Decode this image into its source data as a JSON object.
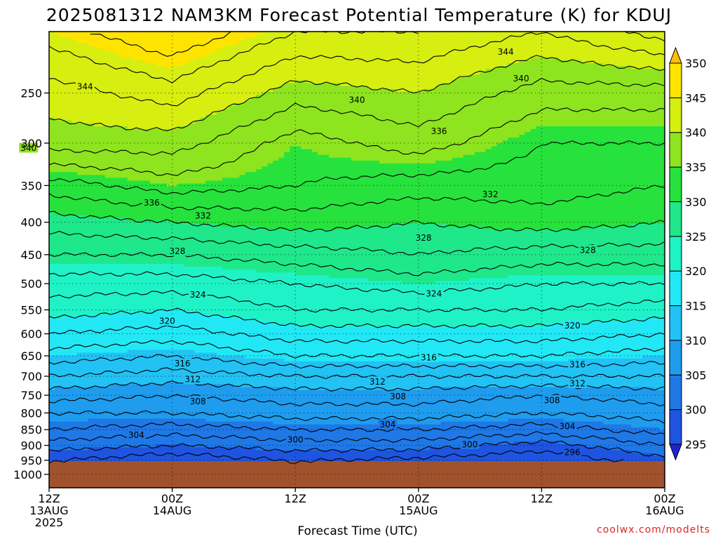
{
  "chart_data": {
    "type": "heatmap",
    "title": "2025081312 NAM3KM Forecast Potential Temperature (K) for KDUJ",
    "xlabel": "Forecast Time (UTC)",
    "ylabel": "",
    "x_ticks": [
      {
        "line1": "12Z",
        "line2": "13AUG",
        "line3": "2025",
        "hour": 0
      },
      {
        "line1": "00Z",
        "line2": "14AUG",
        "line3": "",
        "hour": 12
      },
      {
        "line1": "12Z",
        "line2": "",
        "line3": "",
        "hour": 24
      },
      {
        "line1": "00Z",
        "line2": "15AUG",
        "line3": "",
        "hour": 36
      },
      {
        "line1": "12Z",
        "line2": "",
        "line3": "",
        "hour": 48
      },
      {
        "line1": "00Z",
        "line2": "16AUG",
        "line3": "",
        "hour": 60
      }
    ],
    "x_range_hours": [
      0,
      60
    ],
    "y_scale": "log-pressure",
    "y_range_hpa": [
      1050,
      200
    ],
    "y_ticks": [
      250,
      300,
      350,
      400,
      450,
      500,
      550,
      600,
      650,
      700,
      750,
      800,
      850,
      900,
      950,
      1000
    ],
    "surface_pressure_hpa": 955,
    "grid": "dotted",
    "colorbar": {
      "levels": [
        295,
        300,
        305,
        310,
        315,
        320,
        325,
        330,
        335,
        340,
        345,
        350
      ],
      "colors": [
        "#1f23d6",
        "#1e54e0",
        "#1f78e6",
        "#1f9cee",
        "#22c2f4",
        "#22e8f6",
        "#20f2c8",
        "#1ee88a",
        "#27e23c",
        "#8ee41e",
        "#d6ee10",
        "#ffe400",
        "#ffbe00"
      ],
      "placement": "right"
    },
    "theta_profiles": {
      "pressures_hpa": [
        955,
        900,
        850,
        800,
        750,
        700,
        650,
        600,
        550,
        500,
        450,
        400,
        350,
        300,
        250,
        200
      ],
      "hours": [
        0,
        12,
        24,
        36,
        48,
        60
      ],
      "values_k": [
        [
          298,
          296,
          298,
          297,
          296,
          299
        ],
        [
          301,
          300,
          301,
          301,
          299,
          302
        ],
        [
          304,
          303,
          304,
          304,
          303,
          305
        ],
        [
          306,
          306,
          307,
          307,
          306,
          307
        ],
        [
          309,
          308,
          309,
          309,
          308,
          309
        ],
        [
          312,
          311,
          312,
          312,
          312,
          312
        ],
        [
          315,
          314,
          316,
          316,
          316,
          315
        ],
        [
          318,
          317,
          319,
          319,
          319,
          318
        ],
        [
          321,
          320,
          322,
          322,
          322,
          321
        ],
        [
          323,
          323,
          324,
          325,
          324,
          324
        ],
        [
          326,
          326,
          327,
          328,
          327,
          327
        ],
        [
          329,
          330,
          331,
          330,
          331,
          330
        ],
        [
          333,
          335,
          334,
          333,
          333,
          332
        ],
        [
          339,
          339,
          335,
          337,
          334,
          334
        ],
        [
          341,
          343,
          339,
          340,
          337,
          337
        ],
        [
          345,
          348,
          344,
          344,
          342,
          345
        ]
      ]
    },
    "contour_labels": [
      {
        "text": "344",
        "hour": 3.5,
        "hpa": 244
      },
      {
        "text": "344",
        "hour": 44.5,
        "hpa": 215
      },
      {
        "text": "340",
        "hour": 30,
        "hpa": 256
      },
      {
        "text": "340",
        "hour": 46,
        "hpa": 237
      },
      {
        "text": "340",
        "hour": -2,
        "hpa": 305
      },
      {
        "text": "336",
        "hour": 38,
        "hpa": 287
      },
      {
        "text": "336",
        "hour": 10,
        "hpa": 372
      },
      {
        "text": "332",
        "hour": 15,
        "hpa": 390
      },
      {
        "text": "332",
        "hour": 43,
        "hpa": 361
      },
      {
        "text": "328",
        "hour": 12.5,
        "hpa": 444
      },
      {
        "text": "328",
        "hour": 36.5,
        "hpa": 423
      },
      {
        "text": "328",
        "hour": 52.5,
        "hpa": 442
      },
      {
        "text": "324",
        "hour": 14.5,
        "hpa": 520
      },
      {
        "text": "324",
        "hour": 37.5,
        "hpa": 518
      },
      {
        "text": "320",
        "hour": 11.5,
        "hpa": 572
      },
      {
        "text": "320",
        "hour": 51,
        "hpa": 582
      },
      {
        "text": "316",
        "hour": 13,
        "hpa": 668
      },
      {
        "text": "316",
        "hour": 37,
        "hpa": 653
      },
      {
        "text": "316",
        "hour": 51.5,
        "hpa": 670
      },
      {
        "text": "312",
        "hour": 14,
        "hpa": 707
      },
      {
        "text": "312",
        "hour": 32,
        "hpa": 713
      },
      {
        "text": "312",
        "hour": 51.5,
        "hpa": 718
      },
      {
        "text": "308",
        "hour": 14.5,
        "hpa": 766
      },
      {
        "text": "308",
        "hour": 34,
        "hpa": 753
      },
      {
        "text": "308",
        "hour": 49,
        "hpa": 763
      },
      {
        "text": "304",
        "hour": 8.5,
        "hpa": 866
      },
      {
        "text": "304",
        "hour": 33,
        "hpa": 833
      },
      {
        "text": "304",
        "hour": 50.5,
        "hpa": 839
      },
      {
        "text": "300",
        "hour": 24,
        "hpa": 880
      },
      {
        "text": "300",
        "hour": 41,
        "hpa": 896
      },
      {
        "text": "296",
        "hour": 51,
        "hpa": 922
      }
    ]
  },
  "credit": "coolwx.com/modelts"
}
